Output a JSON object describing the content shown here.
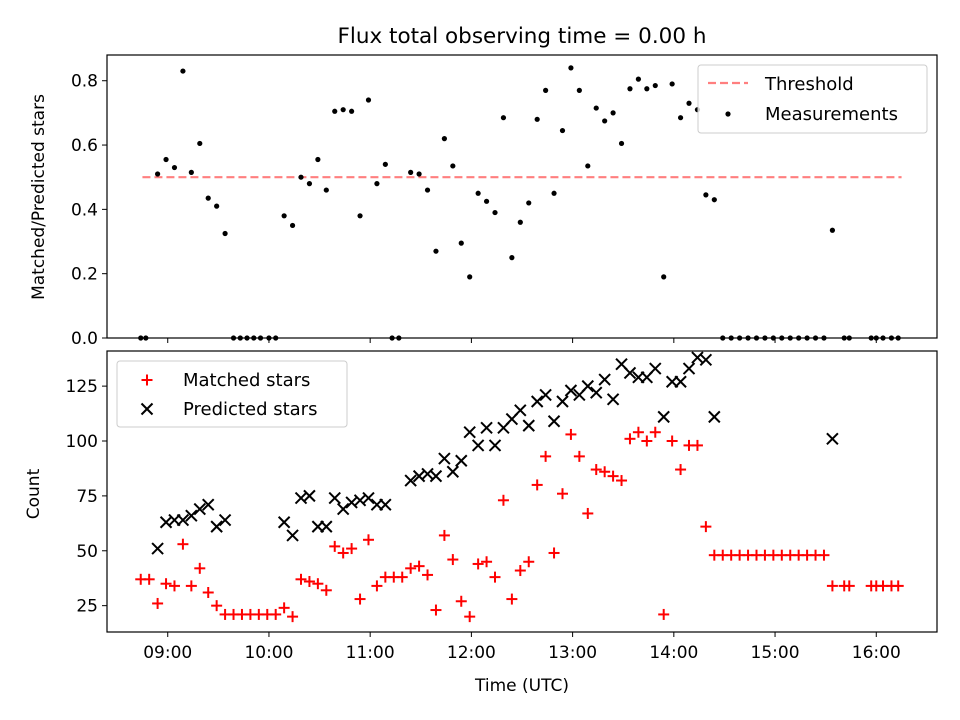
{
  "figure_title": "Flux total observing time = 0.00 h",
  "xlabel": "Time (UTC)",
  "x_ticks": [
    "09:00",
    "10:00",
    "11:00",
    "12:00",
    "13:00",
    "14:00",
    "15:00",
    "16:00"
  ],
  "colors": {
    "threshold": "#ff7f7f",
    "measurement": "#000000",
    "matched": "#ff0000",
    "predicted": "#000000"
  },
  "chart_data": [
    {
      "type": "scatter",
      "ylabel": "Matched/Predicted stars",
      "xlim": [
        "08:24",
        "16:36"
      ],
      "ylim": [
        0,
        0.88
      ],
      "y_ticks": [
        "0.0",
        "0.2",
        "0.4",
        "0.6",
        "0.8"
      ],
      "legend_position": "top-right",
      "threshold": {
        "name": "Threshold",
        "value": 0.5,
        "x": [
          "08:45",
          "16:15"
        ]
      },
      "series": [
        {
          "name": "Measurements",
          "points": [
            [
              "08:44",
              0.0
            ],
            [
              "08:47",
              0.0
            ],
            [
              "08:54",
              0.51
            ],
            [
              "08:59",
              0.555
            ],
            [
              "09:04",
              0.53
            ],
            [
              "09:09",
              0.83
            ],
            [
              "09:14",
              0.515
            ],
            [
              "09:19",
              0.605
            ],
            [
              "09:24",
              0.435
            ],
            [
              "09:29",
              0.41
            ],
            [
              "09:34",
              0.325
            ],
            [
              "09:39",
              0.0
            ],
            [
              "09:43",
              0.0
            ],
            [
              "09:47",
              0.0
            ],
            [
              "09:51",
              0.0
            ],
            [
              "09:55",
              0.0
            ],
            [
              "10:00",
              0.0
            ],
            [
              "10:04",
              0.0
            ],
            [
              "10:09",
              0.38
            ],
            [
              "10:14",
              0.35
            ],
            [
              "10:19",
              0.5
            ],
            [
              "10:24",
              0.48
            ],
            [
              "10:29",
              0.555
            ],
            [
              "10:34",
              0.46
            ],
            [
              "10:39",
              0.705
            ],
            [
              "10:44",
              0.71
            ],
            [
              "10:49",
              0.705
            ],
            [
              "10:54",
              0.38
            ],
            [
              "10:59",
              0.74
            ],
            [
              "11:04",
              0.48
            ],
            [
              "11:09",
              0.54
            ],
            [
              "11:13",
              0.0
            ],
            [
              "11:17",
              0.0
            ],
            [
              "11:24",
              0.515
            ],
            [
              "11:29",
              0.51
            ],
            [
              "11:34",
              0.46
            ],
            [
              "11:39",
              0.27
            ],
            [
              "11:44",
              0.62
            ],
            [
              "11:49",
              0.535
            ],
            [
              "11:54",
              0.295
            ],
            [
              "11:59",
              0.19
            ],
            [
              "12:04",
              0.45
            ],
            [
              "12:09",
              0.425
            ],
            [
              "12:14",
              0.39
            ],
            [
              "12:19",
              0.685
            ],
            [
              "12:24",
              0.25
            ],
            [
              "12:29",
              0.36
            ],
            [
              "12:34",
              0.42
            ],
            [
              "12:39",
              0.68
            ],
            [
              "12:44",
              0.77
            ],
            [
              "12:49",
              0.45
            ],
            [
              "12:54",
              0.645
            ],
            [
              "12:59",
              0.84
            ],
            [
              "13:04",
              0.77
            ],
            [
              "13:09",
              0.535
            ],
            [
              "13:14",
              0.715
            ],
            [
              "13:19",
              0.675
            ],
            [
              "13:24",
              0.7
            ],
            [
              "13:29",
              0.605
            ],
            [
              "13:34",
              0.775
            ],
            [
              "13:39",
              0.805
            ],
            [
              "13:44",
              0.775
            ],
            [
              "13:49",
              0.785
            ],
            [
              "13:54",
              0.19
            ],
            [
              "13:59",
              0.79
            ],
            [
              "14:04",
              0.685
            ],
            [
              "14:09",
              0.73
            ],
            [
              "14:14",
              0.71
            ],
            [
              "14:19",
              0.445
            ],
            [
              "14:24",
              0.43
            ],
            [
              "14:29",
              0.0
            ],
            [
              "14:34",
              0.0
            ],
            [
              "14:39",
              0.0
            ],
            [
              "14:44",
              0.0
            ],
            [
              "14:49",
              0.0
            ],
            [
              "14:54",
              0.0
            ],
            [
              "14:59",
              0.0
            ],
            [
              "15:04",
              0.0
            ],
            [
              "15:09",
              0.0
            ],
            [
              "15:14",
              0.0
            ],
            [
              "15:19",
              0.0
            ],
            [
              "15:24",
              0.0
            ],
            [
              "15:29",
              0.0
            ],
            [
              "15:34",
              0.335
            ],
            [
              "15:41",
              0.0
            ],
            [
              "15:44",
              0.0
            ],
            [
              "15:57",
              0.0
            ],
            [
              "16:00",
              0.0
            ],
            [
              "16:04",
              0.0
            ],
            [
              "16:09",
              0.0
            ],
            [
              "16:13",
              0.0
            ]
          ]
        }
      ]
    },
    {
      "type": "scatter",
      "ylabel": "Count",
      "xlim": [
        "08:24",
        "16:36"
      ],
      "ylim": [
        13,
        141
      ],
      "y_ticks": [
        "25",
        "50",
        "75",
        "100",
        "125"
      ],
      "legend_position": "top-left",
      "series": [
        {
          "name": "Matched stars",
          "marker": "+",
          "points": [
            [
              "08:44",
              37
            ],
            [
              "08:49",
              37
            ],
            [
              "08:54",
              26
            ],
            [
              "08:59",
              35
            ],
            [
              "09:04",
              34
            ],
            [
              "09:09",
              53
            ],
            [
              "09:14",
              34
            ],
            [
              "09:19",
              42
            ],
            [
              "09:24",
              31
            ],
            [
              "09:29",
              25
            ],
            [
              "09:34",
              21
            ],
            [
              "09:39",
              21
            ],
            [
              "09:44",
              21
            ],
            [
              "09:49",
              21
            ],
            [
              "09:54",
              21
            ],
            [
              "09:59",
              21
            ],
            [
              "10:04",
              21
            ],
            [
              "10:09",
              24
            ],
            [
              "10:14",
              20
            ],
            [
              "10:19",
              37
            ],
            [
              "10:24",
              36
            ],
            [
              "10:29",
              35
            ],
            [
              "10:34",
              32
            ],
            [
              "10:39",
              52
            ],
            [
              "10:44",
              49
            ],
            [
              "10:49",
              51
            ],
            [
              "10:54",
              28
            ],
            [
              "10:59",
              55
            ],
            [
              "11:04",
              34
            ],
            [
              "11:09",
              38
            ],
            [
              "11:14",
              38
            ],
            [
              "11:19",
              38
            ],
            [
              "11:24",
              42
            ],
            [
              "11:29",
              43
            ],
            [
              "11:34",
              39
            ],
            [
              "11:39",
              23
            ],
            [
              "11:44",
              57
            ],
            [
              "11:49",
              46
            ],
            [
              "11:54",
              27
            ],
            [
              "11:59",
              20
            ],
            [
              "12:04",
              44
            ],
            [
              "12:09",
              45
            ],
            [
              "12:14",
              38
            ],
            [
              "12:19",
              73
            ],
            [
              "12:24",
              28
            ],
            [
              "12:29",
              41
            ],
            [
              "12:34",
              45
            ],
            [
              "12:39",
              80
            ],
            [
              "12:44",
              93
            ],
            [
              "12:49",
              49
            ],
            [
              "12:54",
              76
            ],
            [
              "12:59",
              103
            ],
            [
              "13:04",
              93
            ],
            [
              "13:09",
              67
            ],
            [
              "13:14",
              87
            ],
            [
              "13:19",
              86
            ],
            [
              "13:24",
              84
            ],
            [
              "13:29",
              82
            ],
            [
              "13:34",
              101
            ],
            [
              "13:39",
              104
            ],
            [
              "13:44",
              100
            ],
            [
              "13:49",
              104
            ],
            [
              "13:54",
              21
            ],
            [
              "13:59",
              100
            ],
            [
              "14:04",
              87
            ],
            [
              "14:09",
              98
            ],
            [
              "14:14",
              98
            ],
            [
              "14:19",
              61
            ],
            [
              "14:24",
              48
            ],
            [
              "14:29",
              48
            ],
            [
              "14:34",
              48
            ],
            [
              "14:39",
              48
            ],
            [
              "14:44",
              48
            ],
            [
              "14:49",
              48
            ],
            [
              "14:54",
              48
            ],
            [
              "14:59",
              48
            ],
            [
              "15:04",
              48
            ],
            [
              "15:09",
              48
            ],
            [
              "15:14",
              48
            ],
            [
              "15:19",
              48
            ],
            [
              "15:24",
              48
            ],
            [
              "15:29",
              48
            ],
            [
              "15:34",
              34
            ],
            [
              "15:41",
              34
            ],
            [
              "15:44",
              34
            ],
            [
              "15:57",
              34
            ],
            [
              "16:00",
              34
            ],
            [
              "16:04",
              34
            ],
            [
              "16:09",
              34
            ],
            [
              "16:13",
              34
            ]
          ]
        },
        {
          "name": "Predicted stars",
          "marker": "x",
          "points": [
            [
              "08:54",
              51
            ],
            [
              "08:59",
              63
            ],
            [
              "09:04",
              64
            ],
            [
              "09:09",
              64
            ],
            [
              "09:14",
              66
            ],
            [
              "09:19",
              69
            ],
            [
              "09:24",
              71
            ],
            [
              "09:29",
              61
            ],
            [
              "09:34",
              64
            ],
            [
              "10:09",
              63
            ],
            [
              "10:14",
              57
            ],
            [
              "10:19",
              74
            ],
            [
              "10:24",
              75
            ],
            [
              "10:29",
              61
            ],
            [
              "10:34",
              61
            ],
            [
              "10:39",
              74
            ],
            [
              "10:44",
              69
            ],
            [
              "10:49",
              72
            ],
            [
              "10:54",
              73
            ],
            [
              "10:59",
              74
            ],
            [
              "11:04",
              71
            ],
            [
              "11:09",
              71
            ],
            [
              "11:24",
              82
            ],
            [
              "11:29",
              84
            ],
            [
              "11:34",
              85
            ],
            [
              "11:39",
              84
            ],
            [
              "11:44",
              92
            ],
            [
              "11:49",
              86
            ],
            [
              "11:54",
              91
            ],
            [
              "11:59",
              104
            ],
            [
              "12:04",
              98
            ],
            [
              "12:09",
              106
            ],
            [
              "12:14",
              98
            ],
            [
              "12:19",
              106
            ],
            [
              "12:24",
              110
            ],
            [
              "12:29",
              114
            ],
            [
              "12:34",
              107
            ],
            [
              "12:39",
              118
            ],
            [
              "12:44",
              121
            ],
            [
              "12:49",
              109
            ],
            [
              "12:54",
              118
            ],
            [
              "12:59",
              123
            ],
            [
              "13:04",
              121
            ],
            [
              "13:09",
              125
            ],
            [
              "13:14",
              122
            ],
            [
              "13:19",
              128
            ],
            [
              "13:24",
              119
            ],
            [
              "13:29",
              135
            ],
            [
              "13:34",
              131
            ],
            [
              "13:39",
              129
            ],
            [
              "13:44",
              129
            ],
            [
              "13:49",
              133
            ],
            [
              "13:54",
              111
            ],
            [
              "13:59",
              127
            ],
            [
              "14:04",
              127
            ],
            [
              "14:09",
              133
            ],
            [
              "14:14",
              138
            ],
            [
              "14:19",
              137
            ],
            [
              "14:24",
              111
            ],
            [
              "15:34",
              101
            ]
          ]
        }
      ]
    }
  ]
}
